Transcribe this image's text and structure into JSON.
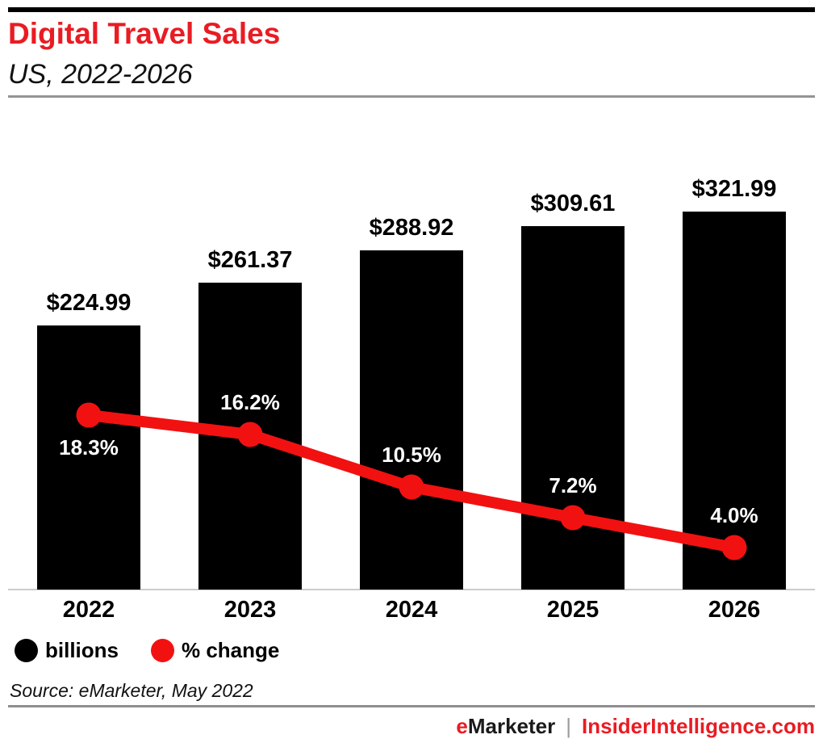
{
  "header": {
    "title": "Digital Travel Sales",
    "subtitle": "US, 2022-2026"
  },
  "chart_data": {
    "type": "bar",
    "subtype": "combo-bar-line",
    "title": "Digital Travel Sales",
    "subtitle": "US, 2022-2026",
    "categories": [
      "2022",
      "2023",
      "2024",
      "2025",
      "2026"
    ],
    "series": [
      {
        "name": "billions",
        "type": "bar",
        "values": [
          224.99,
          261.37,
          288.92,
          309.61,
          321.99
        ],
        "color": "#000000",
        "value_label_format": "$#.00",
        "value_labels": [
          "$224.99",
          "$261.37",
          "$288.92",
          "$309.61",
          "$321.99"
        ]
      },
      {
        "name": "% change",
        "type": "line",
        "values": [
          18.3,
          16.2,
          10.5,
          7.2,
          4.0
        ],
        "color": "#f21111",
        "value_label_format": "#.0%",
        "value_labels": [
          "18.3%",
          "16.2%",
          "10.5%",
          "7.2%",
          "4.0%"
        ],
        "label_positions": [
          "below",
          "above",
          "above",
          "above",
          "above"
        ]
      }
    ],
    "xlabel": "",
    "ylabel": "",
    "grid": false,
    "legend_position": "bottom-left",
    "source": "Source: eMarketer, May 2022"
  },
  "legend": {
    "items": [
      {
        "label": "billions",
        "color": "#000000",
        "shape": "circle"
      },
      {
        "label": "% change",
        "color": "#f21111",
        "shape": "circle"
      }
    ]
  },
  "footer": {
    "source": "Source: eMarketer, May 2022",
    "brand_e": "e",
    "brand_rest": "Marketer",
    "pipe": "|",
    "site": "InsiderIntelligence.com"
  },
  "colors": {
    "brand_red": "#e91c23",
    "line_red": "#f21111",
    "bar_black": "#000000",
    "axis_gray": "#cccccc",
    "rule_gray": "#949494",
    "pct_label_white": "#ffffff"
  }
}
